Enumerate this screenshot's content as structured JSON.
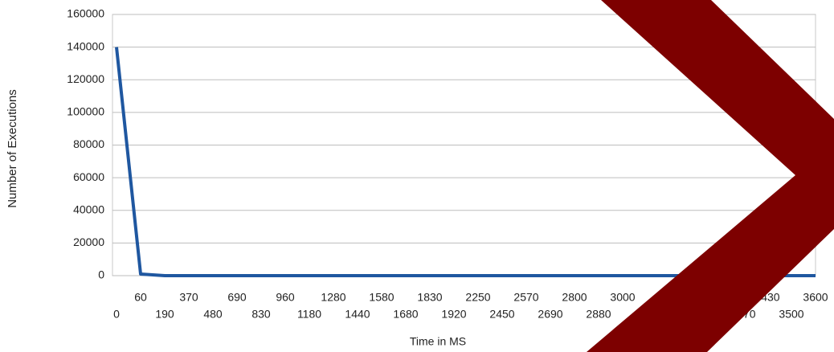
{
  "chart_data": {
    "type": "line",
    "x_label": "Time in MS",
    "y_label": "Number of Executions",
    "categories": [
      "0",
      "60",
      "190",
      "370",
      "480",
      "690",
      "830",
      "960",
      "1180",
      "1280",
      "1440",
      "1580",
      "1680",
      "1830",
      "1920",
      "2250",
      "2450",
      "2570",
      "2690",
      "2800",
      "2880",
      "3000",
      null,
      null,
      null,
      null,
      "3370",
      "3430",
      "3500",
      "3600"
    ],
    "series": [
      {
        "name": "Executions",
        "color": "#1f57a0",
        "values": [
          140000,
          1000,
          0,
          0,
          0,
          0,
          0,
          0,
          0,
          0,
          0,
          0,
          0,
          0,
          0,
          0,
          0,
          0,
          0,
          0,
          0,
          0,
          0,
          0,
          0,
          0,
          0,
          0,
          0,
          0
        ]
      }
    ],
    "ylim": [
      0,
      160000
    ],
    "yticks": [
      0,
      20000,
      40000,
      60000,
      80000,
      100000,
      120000,
      140000,
      160000
    ],
    "grid": true
  }
}
